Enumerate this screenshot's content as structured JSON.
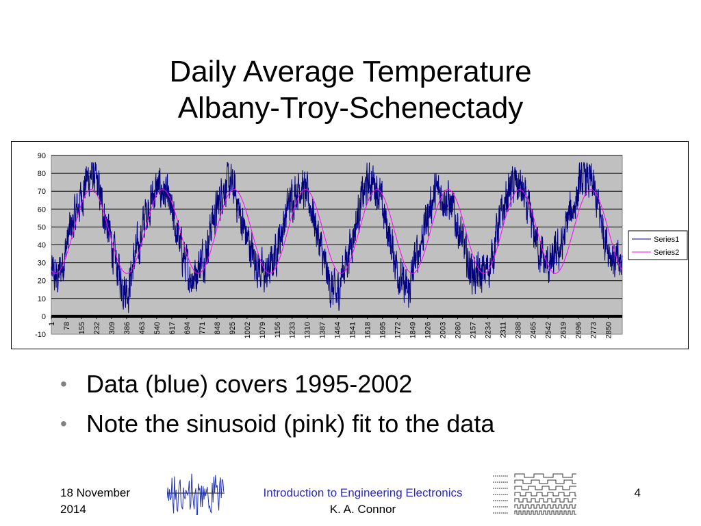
{
  "slide": {
    "title_line1": "Daily Average Temperature",
    "title_line2": "Albany-Troy-Schenectady",
    "bullets": [
      "Data (blue) covers 1995-2002",
      "Note the sinusoid (pink) fit to the data"
    ],
    "footer": {
      "date_line1": "18 November",
      "date_line2": "2014",
      "course": "Introduction to Engineering Electronics",
      "author": "K. A. Connor",
      "page": "4"
    },
    "bullet_glyph": "•",
    "decorations": [
      "noisy-signal-icon",
      "timing-diagram-icon"
    ]
  },
  "colors": {
    "plot_background": "#c0c0c0",
    "series1": "#000080",
    "series2": "#ff00ff",
    "zero_line": "#000000",
    "course_text": "#2a2ab8"
  },
  "chart_data": {
    "type": "line",
    "ylim": [
      -10,
      90
    ],
    "yticks": [
      90,
      80,
      70,
      60,
      50,
      40,
      30,
      20,
      10,
      0,
      -10
    ],
    "xlim": [
      1,
      2922
    ],
    "x_tick_labels": [
      1,
      78,
      155,
      232,
      309,
      386,
      463,
      540,
      617,
      694,
      771,
      848,
      925,
      1002,
      1079,
      1156,
      1233,
      1310,
      1387,
      1464,
      1541,
      1618,
      1695,
      1772,
      1849,
      1926,
      2003,
      2080,
      2157,
      2234,
      2311,
      2388,
      2465,
      2542,
      2619,
      2696,
      2773,
      2850
    ],
    "grid": "horizontal",
    "legend_position": "right",
    "series": [
      {
        "name": "Series1",
        "description_values": "daily averages, approximate envelope",
        "x": [
          1,
          30,
          60,
          90,
          120,
          150,
          180,
          210,
          240,
          270,
          300,
          330,
          365,
          395,
          425,
          455,
          485,
          515,
          545,
          575,
          605,
          635,
          665,
          700,
          730,
          760,
          790,
          820,
          850,
          880,
          910,
          940,
          970,
          1000,
          1030,
          1060,
          1095,
          1125,
          1155,
          1185,
          1215,
          1245,
          1275,
          1305,
          1335,
          1365,
          1395,
          1425,
          1460,
          1490,
          1520,
          1550,
          1580,
          1610,
          1640,
          1670,
          1700,
          1730,
          1760,
          1790,
          1826,
          1856,
          1886,
          1916,
          1946,
          1976,
          2006,
          2036,
          2066,
          2096,
          2126,
          2156,
          2191,
          2221,
          2251,
          2281,
          2311,
          2341,
          2371,
          2401,
          2431,
          2461,
          2491,
          2521,
          2556,
          2586,
          2616,
          2646,
          2676,
          2706,
          2736,
          2766,
          2796,
          2826,
          2856,
          2886,
          2922
        ],
        "y": [
          25,
          20,
          30,
          45,
          55,
          65,
          76,
          80,
          72,
          58,
          45,
          30,
          18,
          15,
          32,
          42,
          58,
          66,
          72,
          70,
          62,
          50,
          38,
          25,
          22,
          30,
          35,
          52,
          60,
          72,
          74,
          70,
          55,
          45,
          35,
          28,
          22,
          28,
          38,
          50,
          62,
          70,
          74,
          68,
          60,
          45,
          30,
          18,
          10,
          25,
          35,
          48,
          62,
          72,
          76,
          72,
          58,
          45,
          32,
          20,
          12,
          28,
          40,
          52,
          64,
          70,
          68,
          64,
          55,
          45,
          32,
          25,
          22,
          25,
          30,
          48,
          58,
          70,
          74,
          72,
          62,
          50,
          40,
          30,
          28,
          35,
          40,
          55,
          62,
          74,
          78,
          74,
          62,
          48,
          38,
          30,
          28
        ]
      },
      {
        "name": "Series2",
        "description_values": "sinusoid fit",
        "amplitude": 23.5,
        "offset": 47.5,
        "period_days": 365.25,
        "peak_day": 205
      }
    ]
  }
}
